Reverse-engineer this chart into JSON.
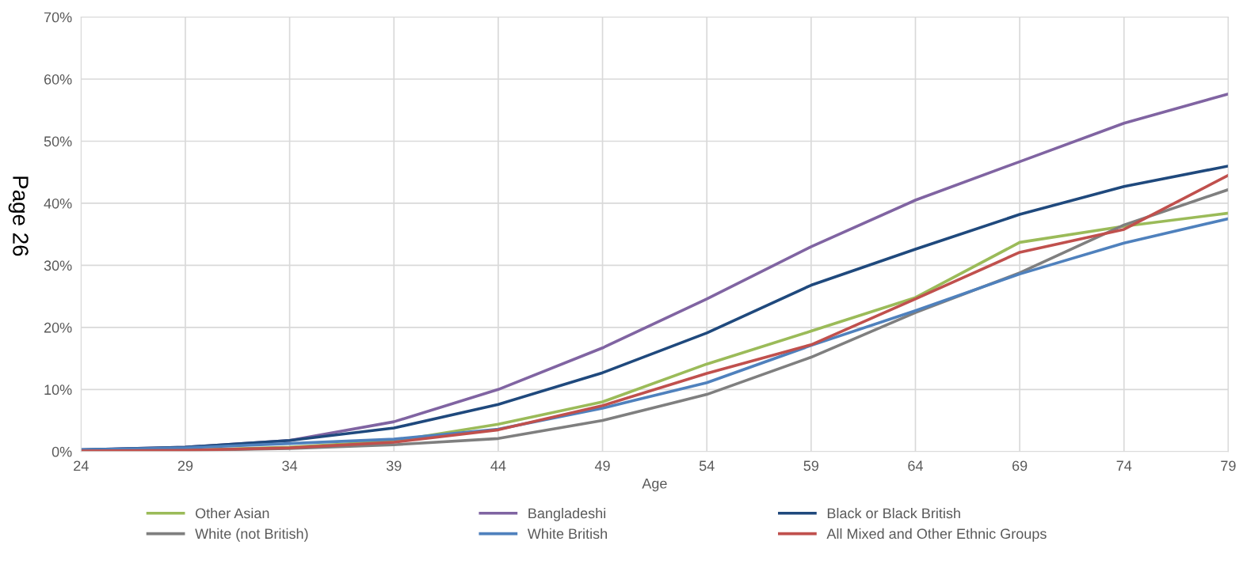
{
  "chart_data": {
    "type": "line",
    "xlabel": "Age",
    "categories": [
      "24",
      "29",
      "34",
      "39",
      "44",
      "49",
      "54",
      "59",
      "64",
      "69",
      "74",
      "79"
    ],
    "series": [
      {
        "name": "Other Asian",
        "color": "#9bbb59",
        "values": [
          0.1,
          0.2,
          0.7,
          1.7,
          4.4,
          8,
          14.1,
          19.4,
          24.8,
          33.7,
          36.3,
          38.4
        ]
      },
      {
        "name": "Bangladeshi",
        "color": "#8064a2",
        "values": [
          0.3,
          0.7,
          1.8,
          4.8,
          10,
          16.7,
          24.6,
          33,
          40.5,
          46.7,
          52.9,
          57.6
        ]
      },
      {
        "name": "Black or Black British",
        "color": "#1f497d",
        "values": [
          0.3,
          0.7,
          1.8,
          3.8,
          7.6,
          12.7,
          19.1,
          26.8,
          32.6,
          38.2,
          42.7,
          46
        ]
      },
      {
        "name": "White (not British)",
        "color": "#7f7f7f",
        "values": [
          0.1,
          0.2,
          0.5,
          1.1,
          2.1,
          5,
          9.2,
          15.2,
          22.4,
          28.8,
          36.5,
          42.2
        ]
      },
      {
        "name": "White British",
        "color": "#4f81bd",
        "values": [
          0.3,
          0.6,
          1.3,
          2,
          3.6,
          7,
          11.1,
          17.1,
          22.7,
          28.6,
          33.6,
          37.5
        ]
      },
      {
        "name": "All Mixed and Other Ethnic Groups",
        "color": "#c0504d",
        "values": [
          0.1,
          0.2,
          0.6,
          1.5,
          3.5,
          7.4,
          12.6,
          17.2,
          24.6,
          32.1,
          35.8,
          44.5
        ]
      }
    ],
    "ylim": [
      0,
      70
    ],
    "yticks": [
      {
        "value": 0,
        "label": "0%"
      },
      {
        "value": 10,
        "label": "10%"
      },
      {
        "value": 20,
        "label": "20%"
      },
      {
        "value": 30,
        "label": "30%"
      },
      {
        "value": 40,
        "label": "40%"
      },
      {
        "value": 50,
        "label": "50%"
      },
      {
        "value": 60,
        "label": "60%"
      },
      {
        "value": 70,
        "label": "70%"
      }
    ],
    "grid": true,
    "legend": "bottom",
    "marker": "none",
    "line_style": "solid",
    "annotations": [
      "Page 26"
    ]
  }
}
